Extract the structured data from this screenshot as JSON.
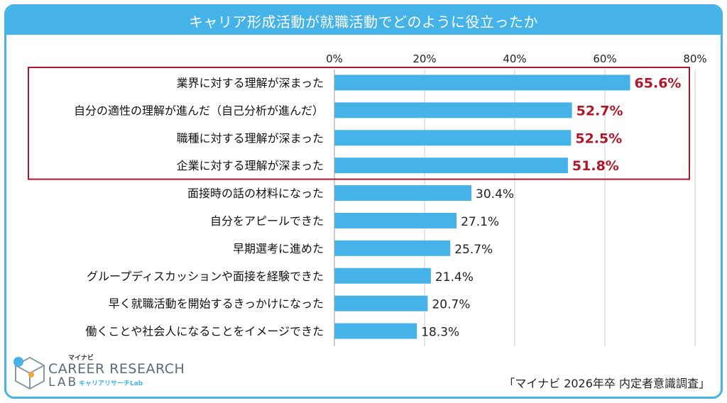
{
  "header": {
    "title": "キャリア形成活動が就職活動でどのように役立ったか"
  },
  "logo": {
    "top_label": "マイナビ",
    "main": "CAREER RESEARCH",
    "lab": "LAB",
    "sub": "キャリアリサーチLab"
  },
  "source": "「マイナビ 2026年卒 内定者意識調査」",
  "colors": {
    "bar": "#45b3e8",
    "highlight_text": "#b0182a",
    "highlight_box": "#b0182a",
    "grid": "#cccccc"
  },
  "chart_data": {
    "type": "bar",
    "orientation": "horizontal",
    "title": "キャリア形成活動が就職活動でどのように役立ったか",
    "xlim": [
      0,
      80
    ],
    "ticks": [
      "0%",
      "20%",
      "40%",
      "60%",
      "80%"
    ],
    "tick_values": [
      0,
      20,
      40,
      60,
      80
    ],
    "grid": true,
    "categories": [
      "業界に対する理解が深まった",
      "自分の適性の理解が進んだ（自己分析が進んだ）",
      "職種に対する理解が深まった",
      "企業に対する理解が深まった",
      "面接時の話の材料になった",
      "自分をアピールできた",
      "早期選考に進めた",
      "グループディスカッションや面接を経験できた",
      "早く就職活動を開始するきっかけになった",
      "働くことや社会人になることをイメージできた"
    ],
    "values": [
      65.6,
      52.7,
      52.5,
      51.8,
      30.4,
      27.1,
      25.7,
      21.4,
      20.7,
      18.3
    ],
    "value_labels": [
      "65.6%",
      "52.7%",
      "52.5%",
      "51.8%",
      "30.4%",
      "27.1%",
      "25.7%",
      "21.4%",
      "20.7%",
      "18.3%"
    ],
    "highlighted_count": 4
  }
}
